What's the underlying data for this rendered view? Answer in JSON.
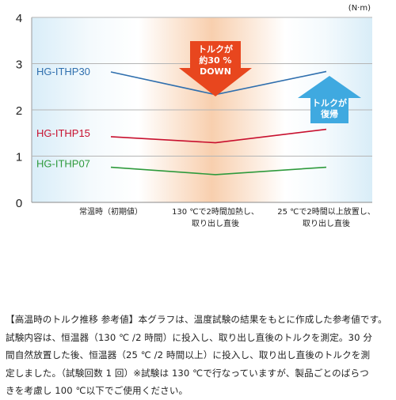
{
  "chart_data": {
    "type": "line",
    "unit_label": "(N·m)",
    "ylim": [
      0,
      4
    ],
    "y_ticks": [
      "0",
      "1",
      "2",
      "3",
      "4"
    ],
    "categories": [
      "常温時（初期値）",
      "130 ℃で2時間加熱し、\n取り出し直後",
      "25 ℃で2時間以上放置し、\n取り出し直後"
    ],
    "grid": true,
    "series": [
      {
        "name": "HG-ITHP30",
        "values": [
          2.82,
          2.33,
          2.83
        ],
        "color": "#2f6fae"
      },
      {
        "name": "HG-ITHP15",
        "values": [
          1.42,
          1.29,
          1.58
        ],
        "color": "#c8102e"
      },
      {
        "name": "HG-ITHP07",
        "values": [
          0.76,
          0.6,
          0.76
        ],
        "color": "#2e9a3c"
      }
    ],
    "annotations": {
      "down": {
        "lines": [
          "トルクが",
          "約30 %",
          "DOWN"
        ],
        "color": "#e8461e"
      },
      "up": {
        "lines": [
          "トルクが",
          "復帰"
        ],
        "color": "#3fa9e0"
      }
    }
  },
  "caption": {
    "lines": [
      "【高温時のトルク推移 参考値】本グラフは、温度試験の結果をもとに作成した参考値です。",
      "試験内容は、恒温器（130 ℃ /2 時間）に投入し、取り出し直後のトルクを測定。30 分",
      "間自然放置した後、恒温器（25 ℃ /2 時間以上）に投入し、取り出し直後のトルクを測",
      "定しました。（試験回数 1 回）※試験は 130 ℃で行なっていますが、製品ごとのばらつ",
      "きを考慮し 100 ℃以下でご使用ください。"
    ]
  }
}
